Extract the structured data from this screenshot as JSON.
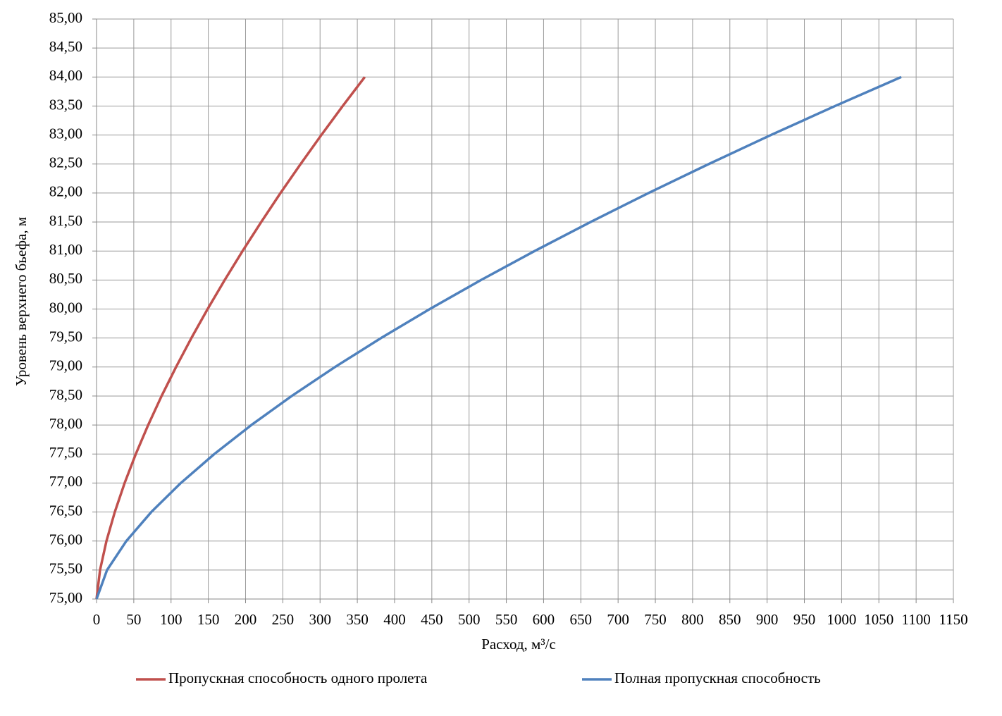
{
  "chart_data": {
    "type": "line",
    "x_label": "Расход, м³/с",
    "y_label": "Уровень верхнего бьефа, м",
    "xlim": [
      0,
      1150
    ],
    "xticks": [
      0,
      50,
      100,
      150,
      200,
      250,
      300,
      350,
      400,
      450,
      500,
      550,
      600,
      650,
      700,
      750,
      800,
      850,
      900,
      950,
      1000,
      1050,
      1100,
      1150
    ],
    "ylim": [
      75,
      85
    ],
    "yticks": [
      {
        "value": 75,
        "label": "75,00"
      },
      {
        "value": 75.5,
        "label": "75,50"
      },
      {
        "value": 76,
        "label": "76,00"
      },
      {
        "value": 76.5,
        "label": "76,50"
      },
      {
        "value": 77,
        "label": "77,00"
      },
      {
        "value": 77.5,
        "label": "77,50"
      },
      {
        "value": 78,
        "label": "78,00"
      },
      {
        "value": 78.5,
        "label": "78,50"
      },
      {
        "value": 79,
        "label": "79,00"
      },
      {
        "value": 79.5,
        "label": "79,50"
      },
      {
        "value": 80,
        "label": "80,00"
      },
      {
        "value": 80.5,
        "label": "80,50"
      },
      {
        "value": 81,
        "label": "81,00"
      },
      {
        "value": 81.5,
        "label": "81,50"
      },
      {
        "value": 82,
        "label": "82,00"
      },
      {
        "value": 82.5,
        "label": "82,50"
      },
      {
        "value": 83,
        "label": "83,00"
      },
      {
        "value": 83.5,
        "label": "83,50"
      },
      {
        "value": 84,
        "label": "84,00"
      },
      {
        "value": 84.5,
        "label": "84,50"
      },
      {
        "value": 85,
        "label": "85,00"
      }
    ],
    "grid": true,
    "legend": "bottom",
    "series": [
      {
        "name": "Пропускная способность одного пролета",
        "color": "#c0504d",
        "x": [
          0,
          4.7,
          13.3,
          24.5,
          37.7,
          52.7,
          69.3,
          87.3,
          106.7,
          127.3,
          149.1,
          172,
          196,
          221,
          246.9,
          273.9,
          301.7,
          330.4,
          360
        ],
        "values": [
          75,
          75.5,
          76,
          76.5,
          77,
          77.5,
          78,
          78.5,
          79,
          79.5,
          80,
          80.5,
          81,
          81.5,
          82,
          82.5,
          83,
          83.5,
          84
        ]
      },
      {
        "name": "Полная пропускная способность",
        "color": "#4f81bd",
        "x": [
          0,
          14.1,
          40,
          73.5,
          113.1,
          158.1,
          207.8,
          261.9,
          320,
          381.9,
          447.3,
          516,
          588,
          663,
          740.8,
          821.7,
          905.1,
          991.2,
          1080
        ],
        "values": [
          75,
          75.5,
          76,
          76.5,
          77,
          77.5,
          78,
          78.5,
          79,
          79.5,
          80,
          80.5,
          81,
          81.5,
          82,
          82.5,
          83,
          83.5,
          84
        ]
      }
    ]
  }
}
